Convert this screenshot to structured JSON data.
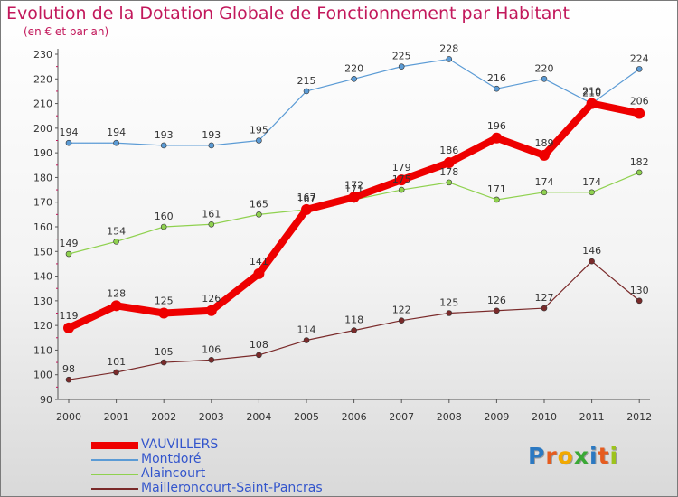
{
  "title": "Evolution de la Dotation Globale de Fonctionnement par Habitant",
  "subtitle": "(en € et par an)",
  "logo_text": "Proxiti",
  "chart_data": {
    "type": "line",
    "title": "Evolution de la Dotation Globale de Fonctionnement par Habitant",
    "subtitle": "(en € et par an)",
    "xlabel": "",
    "ylabel": "",
    "x": [
      "2000",
      "2001",
      "2002",
      "2003",
      "2004",
      "2005",
      "2006",
      "2007",
      "2008",
      "2009",
      "2010",
      "2011",
      "2012"
    ],
    "ylim": [
      90,
      230
    ],
    "yticks": [
      90,
      100,
      110,
      120,
      130,
      140,
      150,
      160,
      170,
      180,
      190,
      200,
      210,
      220,
      230
    ],
    "grid": false,
    "legend": "bottom-left",
    "series": [
      {
        "name": "VAUVILLERS",
        "color": "#ee0000",
        "values": [
          119,
          128,
          125,
          126,
          141,
          167,
          172,
          179,
          186,
          196,
          189,
          210,
          206
        ]
      },
      {
        "name": "Montdoré",
        "color": "#5b9bd5",
        "values": [
          194,
          194,
          193,
          193,
          195,
          215,
          220,
          225,
          228,
          216,
          220,
          210,
          224
        ]
      },
      {
        "name": "Alaincourt",
        "color": "#8fd14f",
        "values": [
          149,
          154,
          160,
          161,
          165,
          167,
          171,
          175,
          178,
          171,
          174,
          174,
          182
        ]
      },
      {
        "name": "Mailleroncourt-Saint-Pancras",
        "color": "#7a2a2a",
        "values": [
          98,
          101,
          105,
          106,
          108,
          114,
          118,
          122,
          125,
          126,
          127,
          146,
          130
        ]
      }
    ]
  }
}
